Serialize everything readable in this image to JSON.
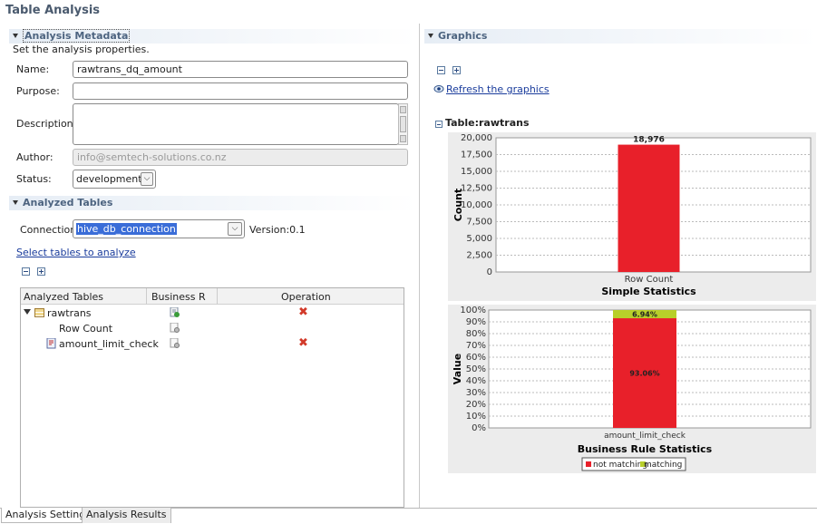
{
  "page": {
    "title": "Table Analysis"
  },
  "metadata": {
    "header": "Analysis Metadata",
    "subtitle": "Set the analysis properties.",
    "name_label": "Name:",
    "name_value": "rawtrans_dq_amount",
    "purpose_label": "Purpose:",
    "purpose_value": "",
    "description_label": "Description:",
    "description_value": "",
    "author_label": "Author:",
    "author_value": "info@semtech-solutions.co.nz",
    "status_label": "Status:",
    "status_value": "development"
  },
  "analyzed": {
    "header": "Analyzed Tables",
    "connection_label": "Connection:",
    "connection_value": "hive_db_connection",
    "version_label": "Version:0.1",
    "select_link": "Select tables to analyze",
    "columns": [
      "Analyzed Tables",
      "Business R",
      "Operation"
    ],
    "rows": [
      {
        "label": "rawtrans",
        "kind": "table"
      },
      {
        "label": "Row Count",
        "kind": "indicator"
      },
      {
        "label": "amount_limit_check",
        "kind": "rule"
      }
    ]
  },
  "graphics": {
    "header": "Graphics",
    "refresh_link": "Refresh the graphics",
    "table_label": "Table:rawtrans"
  },
  "tabs": [
    "Analysis Settings",
    "Analysis Results"
  ],
  "colors": {
    "bar_red": "#e8202a",
    "bar_green": "#b8cf2a",
    "accent": "#4d6480"
  },
  "chart_data": [
    {
      "type": "bar",
      "title": "Simple Statistics",
      "xlabel": "",
      "ylabel": "Count",
      "categories": [
        "Row Count"
      ],
      "values": [
        18976
      ],
      "data_labels": [
        "18,976"
      ],
      "ylim": [
        0,
        20000
      ],
      "yticks": [
        "0",
        "2,500",
        "5,000",
        "7,500",
        "10,000",
        "12,500",
        "15,000",
        "17,500",
        "20,000"
      ],
      "grid": true
    },
    {
      "type": "bar",
      "stacked": true,
      "title": "Business Rule Statistics",
      "xlabel": "",
      "ylabel": "Value",
      "categories": [
        "amount_limit_check"
      ],
      "series": [
        {
          "name": "not matching",
          "values": [
            93.06
          ],
          "label": "93.06%"
        },
        {
          "name": "matching",
          "values": [
            6.94
          ],
          "label": "6.94%"
        }
      ],
      "ylim": [
        0,
        100
      ],
      "yticks": [
        "0%",
        "10%",
        "20%",
        "30%",
        "40%",
        "50%",
        "60%",
        "70%",
        "80%",
        "90%",
        "100%"
      ],
      "legend": "bottom",
      "grid": true
    }
  ]
}
